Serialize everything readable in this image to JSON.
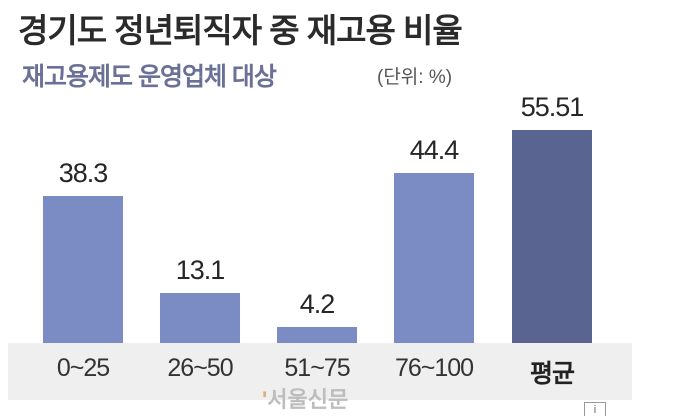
{
  "header": {
    "title": "경기도 정년퇴직자 중 재고용 비율",
    "subtitle": "재고용제도 운영업체 대상",
    "unit": "(단위: %)"
  },
  "watermark": {
    "mark": "'",
    "text": "서울신문"
  },
  "colors": {
    "bar_primary": "#7b8cc4",
    "bar_average": "#5a6490",
    "band": "#efefef",
    "subtitle": "#6b7097"
  },
  "chart_data": {
    "type": "bar",
    "title": "경기도 정년퇴직자 중 재고용 비율",
    "subtitle": "재고용제도 운영업체 대상",
    "unit": "%",
    "xlabel": "",
    "ylabel": "",
    "categories": [
      "0~25",
      "26~50",
      "51~75",
      "76~100",
      "평균"
    ],
    "values": [
      38.3,
      13.1,
      4.2,
      44.4,
      55.51
    ],
    "value_labels": [
      "38.3",
      "13.1",
      "4.2",
      "44.4",
      "55.51"
    ],
    "highlight": "평균",
    "grid": false,
    "legend": "none",
    "ylim": [
      0,
      60
    ]
  }
}
